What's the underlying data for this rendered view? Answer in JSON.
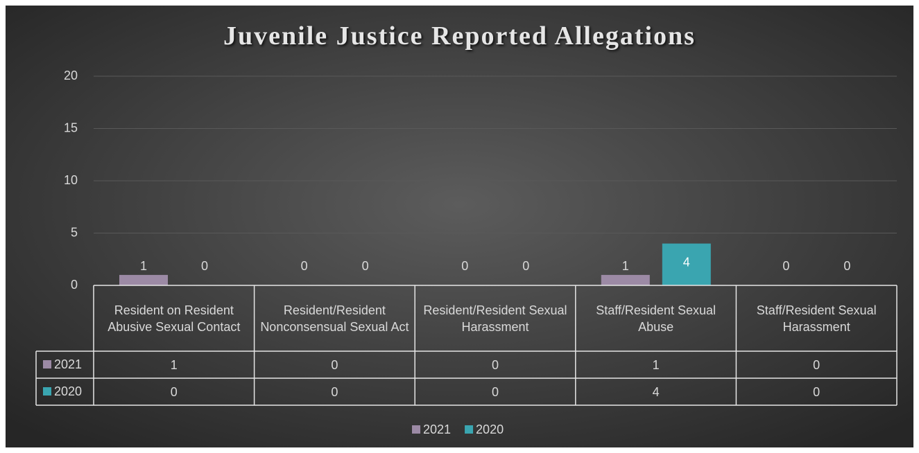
{
  "chart_data": {
    "type": "bar",
    "title": "Juvenile Justice Reported Allegations",
    "categories": [
      "Resident on Resident Abusive Sexual Contact",
      "Resident/Resident Nonconsensual Sexual Act",
      "Resident/Resident Sexual Harassment",
      "Staff/Resident Sexual Abuse",
      "Staff/Resident Sexual Harassment"
    ],
    "series": [
      {
        "name": "2021",
        "color": "#9c8aa5",
        "values": [
          1,
          0,
          0,
          1,
          0
        ]
      },
      {
        "name": "2020",
        "color": "#3aa5b0",
        "values": [
          0,
          0,
          0,
          4,
          0
        ]
      }
    ],
    "ylim": [
      0,
      20
    ],
    "yticks": [
      0,
      5,
      10,
      15,
      20
    ],
    "grid": true,
    "data_table": true,
    "legend": "bottom"
  }
}
